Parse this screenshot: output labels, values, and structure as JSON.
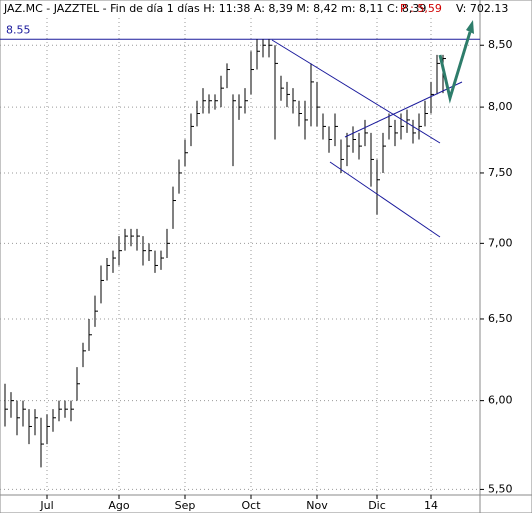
{
  "chart_data": {
    "type": "hlc",
    "title": "JAZ.MC - JAZZTEL - Fin de día 1 días  H: 11:38  A: 8,39  M: 8,42  m: 8,11  C: 8,39",
    "change": "P : 5,59",
    "volume": "V: 702.13",
    "reference": {
      "value": 8.55,
      "label": "8.55",
      "color": "#1a1a9c"
    },
    "log_scale": true,
    "grid": true,
    "color": "#000000",
    "categories": [
      null,
      null,
      null,
      null,
      null,
      null,
      null,
      "Jul",
      null,
      null,
      null,
      null,
      null,
      null,
      null,
      null,
      null,
      null,
      null,
      "Ago",
      null,
      null,
      null,
      null,
      null,
      null,
      null,
      null,
      null,
      null,
      "Sep",
      null,
      null,
      null,
      null,
      null,
      null,
      null,
      null,
      null,
      null,
      "Oct",
      null,
      null,
      null,
      null,
      null,
      null,
      null,
      null,
      null,
      null,
      "Nov",
      null,
      null,
      null,
      null,
      null,
      null,
      null,
      null,
      null,
      "Dic",
      null,
      null,
      null,
      null,
      null,
      null,
      null,
      null,
      "14",
      null,
      null
    ],
    "high": [
      6.1,
      6.05,
      6.0,
      6.0,
      5.95,
      5.95,
      5.9,
      5.92,
      5.95,
      6.0,
      6.0,
      6.0,
      6.2,
      6.35,
      6.5,
      6.65,
      6.85,
      6.9,
      6.95,
      7.05,
      7.1,
      7.1,
      7.1,
      7.05,
      7.0,
      6.95,
      6.95,
      7.1,
      7.4,
      7.6,
      7.75,
      7.95,
      8.05,
      8.15,
      8.1,
      8.1,
      8.25,
      8.35,
      8.1,
      8.1,
      8.15,
      8.45,
      8.55,
      8.55,
      8.55,
      8.5,
      8.25,
      8.2,
      8.15,
      8.05,
      8.05,
      8.35,
      8.2,
      7.95,
      7.85,
      7.95,
      7.75,
      7.8,
      7.85,
      7.8,
      7.9,
      7.8,
      7.6,
      7.8,
      7.95,
      7.9,
      7.95,
      7.98,
      7.9,
      7.95,
      8.05,
      8.2,
      8.42,
      8.42
    ],
    "low": [
      5.85,
      5.9,
      5.8,
      5.85,
      5.75,
      5.8,
      5.62,
      5.75,
      5.82,
      5.88,
      5.9,
      5.88,
      6.0,
      6.2,
      6.3,
      6.45,
      6.6,
      6.75,
      6.8,
      6.85,
      6.95,
      6.98,
      6.95,
      6.85,
      6.88,
      6.8,
      6.82,
      6.9,
      7.1,
      7.35,
      7.55,
      7.7,
      7.85,
      7.95,
      7.95,
      7.98,
      8.0,
      8.15,
      7.55,
      7.9,
      7.95,
      8.1,
      8.3,
      8.4,
      8.4,
      7.75,
      8.05,
      8.0,
      7.95,
      7.85,
      7.75,
      7.85,
      7.85,
      7.75,
      7.65,
      7.7,
      7.5,
      7.55,
      7.65,
      7.6,
      7.7,
      7.4,
      7.2,
      7.5,
      7.75,
      7.7,
      7.75,
      7.8,
      7.72,
      7.75,
      7.85,
      7.95,
      8.1,
      8.11
    ],
    "close": [
      5.95,
      6.0,
      5.9,
      5.95,
      5.85,
      5.9,
      5.75,
      5.85,
      5.9,
      5.95,
      5.95,
      5.95,
      6.1,
      6.3,
      6.4,
      6.55,
      6.75,
      6.85,
      6.9,
      6.95,
      7.05,
      7.05,
      7.05,
      6.95,
      6.95,
      6.85,
      6.9,
      7.0,
      7.3,
      7.5,
      7.65,
      7.85,
      7.95,
      8.05,
      8.05,
      8.05,
      8.15,
      8.3,
      8.05,
      8.0,
      8.05,
      8.3,
      8.45,
      8.5,
      8.5,
      8.35,
      8.15,
      8.1,
      8.05,
      7.95,
      7.9,
      8.2,
      8.0,
      7.85,
      7.75,
      7.85,
      7.6,
      7.7,
      7.75,
      7.7,
      7.8,
      7.6,
      7.45,
      7.7,
      7.85,
      7.8,
      7.85,
      7.9,
      7.8,
      7.85,
      7.95,
      8.1,
      8.35,
      8.39
    ],
    "ylim": [
      5.47,
      8.73
    ],
    "yticks": [
      {
        "value": 5.5,
        "label": "5,50"
      },
      {
        "value": 6,
        "label": "6,00"
      },
      {
        "value": 6.5,
        "label": "6,50"
      },
      {
        "value": 7,
        "label": "7,00"
      },
      {
        "value": 7.5,
        "label": "7,50"
      },
      {
        "value": 8,
        "label": "8,00"
      },
      {
        "value": 8.5,
        "label": "8,50"
      }
    ]
  }
}
